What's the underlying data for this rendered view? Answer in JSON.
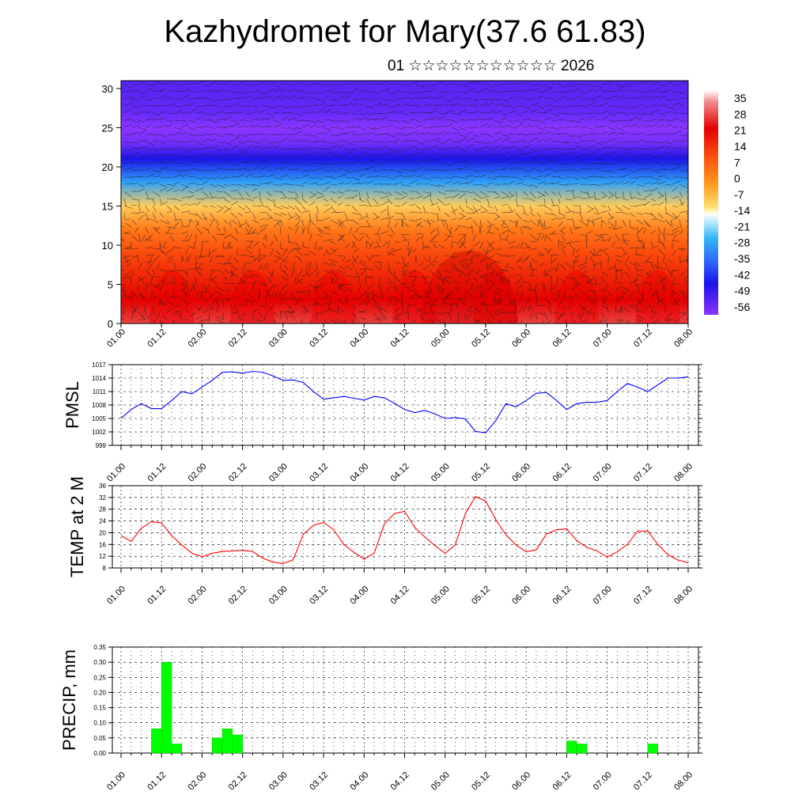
{
  "header": {
    "title": "Kazhydromet for Mary(37.6 61.83)",
    "subtitle": "01 ☆☆☆☆☆☆☆☆☆☆☆ 2026"
  },
  "chart_data": [
    {
      "type": "heatmap",
      "title": "",
      "xlabel": "",
      "ylabel": "",
      "x_tick_labels": [
        "01.00",
        "01.12",
        "02.00",
        "02.12",
        "03.00",
        "03.12",
        "04.00",
        "04.12",
        "05.00",
        "05.12",
        "06.00",
        "06.12",
        "07.00",
        "07.12",
        "08.00"
      ],
      "y_ticks": [
        0,
        5,
        10,
        15,
        20,
        25,
        30
      ],
      "ylim": [
        0,
        31
      ],
      "colorbar": {
        "labels": [
          "35",
          "28",
          "21",
          "14",
          "7",
          "0",
          "-7",
          "-14",
          "-21",
          "-28",
          "-35",
          "-42",
          "-49",
          "-56"
        ],
        "range": [
          -63,
          42
        ]
      },
      "temperature_profile": {
        "heights": [
          0,
          3,
          6,
          9,
          12,
          15,
          18,
          21,
          23,
          25,
          27,
          31
        ],
        "values": [
          30,
          24,
          18,
          12,
          4,
          -10,
          -30,
          -48,
          -60,
          -64,
          -58,
          -56
        ]
      },
      "wind_vectors_overlay": true
    },
    {
      "type": "line",
      "ylabel": "PMSL",
      "ylim": [
        999,
        1017
      ],
      "y_ticks": [
        999,
        1002,
        1005,
        1008,
        1011,
        1014,
        1017
      ],
      "x_tick_labels": [
        "01.00",
        "01.12",
        "02.00",
        "02.12",
        "03.00",
        "03.12",
        "04.00",
        "04.12",
        "05.00",
        "05.12",
        "06.00",
        "06.12",
        "07.00",
        "07.12",
        "08.00"
      ],
      "color": "#0000ff",
      "series": [
        {
          "x": [
            0,
            3,
            6,
            9,
            12,
            15,
            18,
            21,
            24,
            27,
            30,
            33,
            36,
            39,
            42,
            45,
            48,
            51,
            54,
            57,
            60,
            63,
            66,
            69,
            72,
            75,
            78,
            81,
            84,
            87,
            90,
            93,
            96,
            99,
            102,
            105,
            108,
            111,
            114,
            117,
            120,
            123,
            126,
            129,
            132,
            135,
            138,
            141,
            144,
            147,
            150,
            153,
            156,
            159,
            162,
            165,
            168
          ],
          "values": [
            1005,
            1007,
            1008.3,
            1007.2,
            1007.2,
            1009,
            1011,
            1010.5,
            1012,
            1013.5,
            1015.3,
            1015.4,
            1015.1,
            1015.5,
            1015.3,
            1014.5,
            1013.5,
            1013.6,
            1013,
            1011,
            1009.3,
            1009.6,
            1009.9,
            1009.5,
            1009.1,
            1009.9,
            1009.6,
            1008.4,
            1007,
            1006.3,
            1006.8,
            1006,
            1005,
            1005.2,
            1004.9,
            1002.1,
            1001.8,
            1004.5,
            1008.3,
            1007.6,
            1009,
            1010.6,
            1010.8,
            1009,
            1007,
            1008.3,
            1008.6,
            1008.6,
            1009,
            1011,
            1012.8,
            1012,
            1011,
            1012.5,
            1014,
            1014,
            1014.3
          ]
        }
      ]
    },
    {
      "type": "line",
      "ylabel": "TEMP at 2 M",
      "ylim": [
        8,
        36
      ],
      "y_ticks": [
        8,
        12,
        16,
        20,
        24,
        28,
        32,
        36
      ],
      "x_tick_labels": [
        "01.00",
        "01.12",
        "02.00",
        "02.12",
        "03.00",
        "03.12",
        "04.00",
        "04.12",
        "05.00",
        "05.12",
        "06.00",
        "06.12",
        "07.00",
        "07.12",
        "08.00"
      ],
      "color": "#ff0000",
      "series": [
        {
          "x": [
            0,
            3,
            6,
            9,
            12,
            15,
            18,
            21,
            24,
            27,
            30,
            33,
            36,
            39,
            42,
            45,
            48,
            51,
            54,
            57,
            60,
            63,
            66,
            69,
            72,
            75,
            78,
            81,
            84,
            87,
            90,
            93,
            96,
            99,
            102,
            105,
            108,
            111,
            114,
            117,
            120,
            123,
            126,
            129,
            132,
            135,
            138,
            141,
            144,
            147,
            150,
            153,
            156,
            159,
            162,
            165,
            168
          ],
          "values": [
            19,
            17,
            21.5,
            23.8,
            23.3,
            19,
            15.8,
            13,
            11.8,
            13,
            13.6,
            13.8,
            14,
            13.6,
            11.3,
            10,
            9.5,
            10.8,
            19.5,
            22.5,
            23.5,
            21,
            16,
            13.3,
            11,
            13,
            23,
            26.5,
            27.3,
            21.8,
            18.5,
            15.6,
            13,
            15.8,
            26.5,
            32.3,
            30.8,
            24.5,
            19.3,
            15.8,
            13.5,
            14.2,
            19.5,
            21,
            21.3,
            17.3,
            15,
            13.8,
            11.7,
            13.5,
            16,
            20.5,
            20.6,
            16,
            12.5,
            10.7,
            9.8
          ]
        }
      ]
    },
    {
      "type": "bar",
      "ylabel": "PRECIP, mm",
      "ylim": [
        0,
        0.35
      ],
      "y_ticks": [
        "0.00",
        "0.05",
        "0.10",
        "0.15",
        "0.20",
        "0.25",
        "0.30",
        "0.35"
      ],
      "x_tick_labels": [
        "01.00",
        "01.12",
        "02.00",
        "02.12",
        "03.00",
        "03.12",
        "04.00",
        "04.12",
        "05.00",
        "05.12",
        "06.00",
        "06.12",
        "07.00",
        "07.12",
        "08.00"
      ],
      "color": "#00ff00",
      "bars": [
        {
          "start": 9,
          "end": 12,
          "value": 0.08
        },
        {
          "start": 12,
          "end": 15,
          "value": 0.3
        },
        {
          "start": 15,
          "end": 18,
          "value": 0.03
        },
        {
          "start": 27,
          "end": 30,
          "value": 0.05
        },
        {
          "start": 30,
          "end": 33,
          "value": 0.08
        },
        {
          "start": 33,
          "end": 36,
          "value": 0.06
        },
        {
          "start": 132,
          "end": 135,
          "value": 0.04
        },
        {
          "start": 135,
          "end": 138,
          "value": 0.03
        },
        {
          "start": 156,
          "end": 159,
          "value": 0.03
        }
      ]
    }
  ]
}
